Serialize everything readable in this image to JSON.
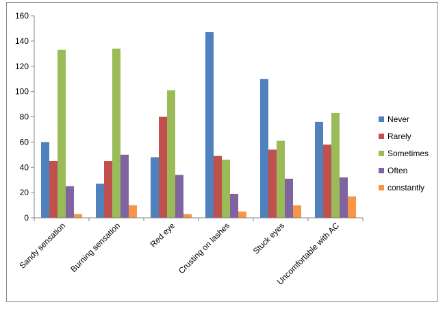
{
  "chart_data": {
    "type": "bar",
    "categories": [
      "Sandy sensation",
      "Burning sensation",
      "Red eye",
      "Crusting on lashes",
      "Stuck eyes",
      "Uncomfortable with AC"
    ],
    "series": [
      {
        "name": "Never",
        "color": "#4F81BD",
        "values": [
          60,
          27,
          48,
          147,
          110,
          76
        ]
      },
      {
        "name": "Rarely",
        "color": "#C0504D",
        "values": [
          45,
          45,
          80,
          49,
          54,
          58
        ]
      },
      {
        "name": "Sometimes",
        "color": "#9BBB59",
        "values": [
          133,
          134,
          101,
          46,
          61,
          83
        ]
      },
      {
        "name": "Often",
        "color": "#8064A2",
        "values": [
          25,
          50,
          34,
          19,
          31,
          32
        ]
      },
      {
        "name": "constantly",
        "color": "#F79646",
        "values": [
          3,
          10,
          3,
          5,
          10,
          17
        ]
      }
    ],
    "ylim": [
      0,
      160
    ],
    "yticks": [
      0,
      20,
      40,
      60,
      80,
      100,
      120,
      140,
      160
    ],
    "grid": false,
    "legend_position": "right"
  }
}
